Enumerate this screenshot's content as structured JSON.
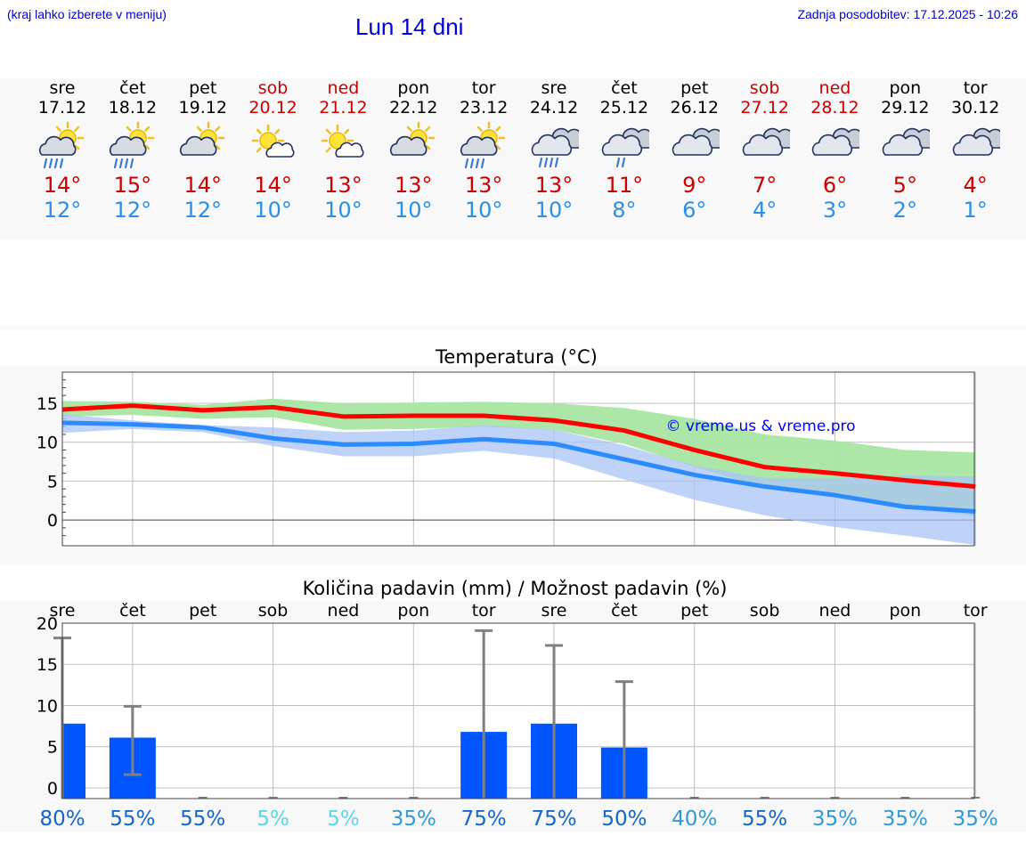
{
  "header": {
    "hint": "(kraj lahko izberete v meniju)",
    "title": "Lun 14 dni",
    "updated": "Zadnja posodobitev: 17.12.2025 - 10:26"
  },
  "forecast": [
    {
      "day": "sre",
      "date": "17.12",
      "max": "14°",
      "min": "12°",
      "weekend": false,
      "icon": "sun-cloud-rain-icon"
    },
    {
      "day": "čet",
      "date": "18.12",
      "max": "15°",
      "min": "12°",
      "weekend": false,
      "icon": "sun-cloud-rain-icon"
    },
    {
      "day": "pet",
      "date": "19.12",
      "max": "14°",
      "min": "12°",
      "weekend": false,
      "icon": "sun-cloud-icon"
    },
    {
      "day": "sob",
      "date": "20.12",
      "max": "14°",
      "min": "10°",
      "weekend": true,
      "icon": "sun-small-cloud-icon"
    },
    {
      "day": "ned",
      "date": "21.12",
      "max": "13°",
      "min": "10°",
      "weekend": true,
      "icon": "sun-small-cloud-icon"
    },
    {
      "day": "pon",
      "date": "22.12",
      "max": "13°",
      "min": "10°",
      "weekend": false,
      "icon": "sun-cloud-icon"
    },
    {
      "day": "tor",
      "date": "23.12",
      "max": "13°",
      "min": "10°",
      "weekend": false,
      "icon": "sun-cloud-rain-icon"
    },
    {
      "day": "sre",
      "date": "24.12",
      "max": "13°",
      "min": "10°",
      "weekend": false,
      "icon": "cloud-rain-icon"
    },
    {
      "day": "čet",
      "date": "25.12",
      "max": "11°",
      "min": "8°",
      "weekend": false,
      "icon": "cloud-light-rain-icon"
    },
    {
      "day": "pet",
      "date": "26.12",
      "max": "9°",
      "min": "6°",
      "weekend": false,
      "icon": "clouds-icon"
    },
    {
      "day": "sob",
      "date": "27.12",
      "max": "7°",
      "min": "4°",
      "weekend": true,
      "icon": "clouds-icon"
    },
    {
      "day": "ned",
      "date": "28.12",
      "max": "6°",
      "min": "3°",
      "weekend": true,
      "icon": "clouds-icon"
    },
    {
      "day": "pon",
      "date": "29.12",
      "max": "5°",
      "min": "2°",
      "weekend": false,
      "icon": "clouds-icon"
    },
    {
      "day": "tor",
      "date": "30.12",
      "max": "4°",
      "min": "1°",
      "weekend": false,
      "icon": "clouds-icon"
    }
  ],
  "colors": {
    "max_line": "#ff0000",
    "min_line": "#2b8cff",
    "max_band": "#a8e6a3",
    "min_band": "#a9c4f5",
    "bar": "#0055ff",
    "errbar": "#808080",
    "grid": "#c0c0c0",
    "weekend": "#cc0000",
    "watermark": "#0000ff"
  },
  "chart_data": [
    {
      "type": "line",
      "title": "Temperatura (°C)",
      "watermark": "© vreme.us & vreme.pro",
      "x": [
        0,
        1,
        2,
        3,
        4,
        5,
        6,
        7,
        8,
        9,
        10,
        11,
        12,
        13
      ],
      "ylim": [
        -3.3,
        19
      ],
      "yticks": [
        0,
        5,
        10,
        15
      ],
      "series": [
        {
          "name": "max",
          "values": [
            14.2,
            14.7,
            14.1,
            14.5,
            13.3,
            13.4,
            13.4,
            12.8,
            11.5,
            9.0,
            6.8,
            6.0,
            5.1,
            4.3
          ]
        },
        {
          "name": "min",
          "values": [
            12.5,
            12.3,
            11.9,
            10.5,
            9.7,
            9.8,
            10.4,
            9.8,
            7.8,
            5.8,
            4.3,
            3.2,
            1.7,
            1.1
          ]
        }
      ],
      "bands": [
        {
          "name": "max range",
          "low": [
            13.3,
            13.5,
            13.0,
            13.2,
            11.6,
            11.7,
            12.0,
            11.6,
            9.8,
            6.8,
            4.2,
            3.5,
            1.5,
            0.5
          ],
          "high": [
            15.3,
            15.2,
            14.8,
            15.6,
            15.0,
            15.1,
            15.2,
            15.0,
            14.4,
            13.0,
            11.0,
            10.2,
            9.0,
            8.7
          ]
        },
        {
          "name": "min range",
          "low": [
            11.2,
            11.7,
            11.3,
            9.5,
            8.2,
            8.2,
            8.9,
            7.9,
            5.2,
            2.6,
            0.6,
            -0.9,
            -2.0,
            -3.2
          ],
          "high": [
            13.6,
            12.8,
            12.2,
            11.9,
            11.3,
            11.5,
            12.2,
            11.6,
            9.6,
            7.0,
            5.4,
            5.4,
            5.7,
            5.6
          ]
        }
      ]
    },
    {
      "type": "bar",
      "title": "Količina padavin (mm) / Možnost padavin (%)",
      "categories": [
        "sre",
        "čet",
        "pet",
        "sob",
        "ned",
        "pon",
        "tor",
        "sre",
        "čet",
        "pet",
        "sob",
        "ned",
        "pon",
        "tor"
      ],
      "ylim": [
        -1.3,
        20
      ],
      "yticks": [
        0,
        5,
        10,
        15,
        20
      ],
      "values": [
        7.8,
        6.1,
        0,
        0,
        0,
        0,
        6.8,
        7.8,
        4.9,
        0,
        0,
        0,
        0,
        0
      ],
      "err_low": [
        0,
        1.6,
        0,
        0,
        0,
        0,
        0,
        0,
        0,
        0,
        0,
        0,
        0,
        0
      ],
      "err_high": [
        18.2,
        9.9,
        0,
        0,
        0,
        0,
        19.1,
        17.3,
        12.9,
        0,
        0,
        0,
        0,
        0
      ],
      "chance": [
        "80%",
        "55%",
        "55%",
        "5%",
        "5%",
        "35%",
        "75%",
        "75%",
        "50%",
        "40%",
        "55%",
        "35%",
        "35%",
        "35%"
      ],
      "chance_colors": [
        "#1466c8",
        "#1466c8",
        "#1466c8",
        "#5cd6e6",
        "#5cd6e6",
        "#2e9ad6",
        "#1466c8",
        "#1466c8",
        "#1466c8",
        "#2e9ad6",
        "#1466c8",
        "#2e9ad6",
        "#2e9ad6",
        "#2e9ad6"
      ]
    }
  ]
}
